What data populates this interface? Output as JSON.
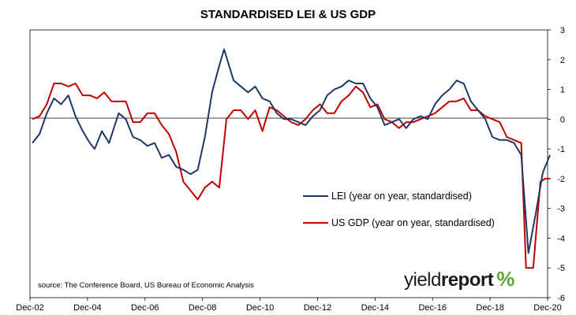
{
  "chart_data": {
    "type": "line",
    "title": "STANDARDISED LEI & US GDP",
    "x_tick_labels": [
      "Dec-02",
      "Dec-04",
      "Dec-06",
      "Dec-08",
      "Dec-10",
      "Dec-12",
      "Dec-14",
      "Dec-16",
      "Dec-18",
      "Dec-20"
    ],
    "y_right_ticks": [
      3,
      2,
      1,
      0,
      -1,
      -2,
      -3,
      -4,
      -5,
      -6
    ],
    "ylim": [
      -6,
      3
    ],
    "xlim": [
      "2002-12",
      "2020-12"
    ],
    "legend_position": "center-right",
    "grid": false,
    "y_axis_side": "right",
    "series": [
      {
        "name": "LEI (year on year, standardised)",
        "color": "#1f3864",
        "points": [
          [
            "2003-01",
            -0.8
          ],
          [
            "2003-04",
            -0.5
          ],
          [
            "2003-07",
            0.2
          ],
          [
            "2003-10",
            0.7
          ],
          [
            "2004-01",
            0.5
          ],
          [
            "2004-04",
            0.8
          ],
          [
            "2004-07",
            0.1
          ],
          [
            "2004-10",
            -0.4
          ],
          [
            "2005-01",
            -0.8
          ],
          [
            "2005-03",
            -1.0
          ],
          [
            "2005-06",
            -0.4
          ],
          [
            "2005-09",
            -0.8
          ],
          [
            "2006-01",
            0.2
          ],
          [
            "2006-04",
            0.0
          ],
          [
            "2006-07",
            -0.6
          ],
          [
            "2006-10",
            -0.7
          ],
          [
            "2007-01",
            -0.9
          ],
          [
            "2007-04",
            -0.8
          ],
          [
            "2007-07",
            -1.3
          ],
          [
            "2007-10",
            -1.2
          ],
          [
            "2008-01",
            -1.6
          ],
          [
            "2008-04",
            -1.7
          ],
          [
            "2008-07",
            -1.85
          ],
          [
            "2008-10",
            -1.7
          ],
          [
            "2009-01",
            -0.6
          ],
          [
            "2009-04",
            0.9
          ],
          [
            "2009-07",
            1.8
          ],
          [
            "2009-09",
            2.35
          ],
          [
            "2010-01",
            1.3
          ],
          [
            "2010-04",
            1.1
          ],
          [
            "2010-07",
            0.9
          ],
          [
            "2010-10",
            1.1
          ],
          [
            "2011-01",
            0.7
          ],
          [
            "2011-04",
            0.6
          ],
          [
            "2011-07",
            0.2
          ],
          [
            "2011-10",
            0.0
          ],
          [
            "2012-01",
            0.0
          ],
          [
            "2012-04",
            -0.1
          ],
          [
            "2012-07",
            -0.2
          ],
          [
            "2012-10",
            0.1
          ],
          [
            "2013-01",
            0.3
          ],
          [
            "2013-04",
            0.8
          ],
          [
            "2013-07",
            1.0
          ],
          [
            "2013-10",
            1.1
          ],
          [
            "2014-01",
            1.3
          ],
          [
            "2014-04",
            1.2
          ],
          [
            "2014-07",
            1.2
          ],
          [
            "2014-10",
            0.7
          ],
          [
            "2015-01",
            0.4
          ],
          [
            "2015-04",
            -0.2
          ],
          [
            "2015-07",
            -0.1
          ],
          [
            "2015-10",
            0.0
          ],
          [
            "2016-01",
            -0.3
          ],
          [
            "2016-04",
            0.0
          ],
          [
            "2016-07",
            0.1
          ],
          [
            "2016-10",
            0.0
          ],
          [
            "2017-01",
            0.5
          ],
          [
            "2017-04",
            0.8
          ],
          [
            "2017-07",
            1.0
          ],
          [
            "2017-10",
            1.3
          ],
          [
            "2018-01",
            1.2
          ],
          [
            "2018-04",
            0.6
          ],
          [
            "2018-07",
            0.3
          ],
          [
            "2018-10",
            0.0
          ],
          [
            "2019-01",
            -0.6
          ],
          [
            "2019-04",
            -0.7
          ],
          [
            "2019-07",
            -0.7
          ],
          [
            "2019-10",
            -0.8
          ],
          [
            "2020-01",
            -1.2
          ],
          [
            "2020-04",
            -4.5
          ],
          [
            "2020-07",
            -3.2
          ],
          [
            "2020-10",
            -1.8
          ],
          [
            "2021-01",
            -1.2
          ]
        ]
      },
      {
        "name": "US GDP (year on year, standardised)",
        "color": "#c00000",
        "points": [
          [
            "2003-01",
            0.0
          ],
          [
            "2003-04",
            0.1
          ],
          [
            "2003-07",
            0.5
          ],
          [
            "2003-10",
            1.2
          ],
          [
            "2004-01",
            1.2
          ],
          [
            "2004-04",
            1.1
          ],
          [
            "2004-07",
            1.2
          ],
          [
            "2004-10",
            0.8
          ],
          [
            "2005-01",
            0.8
          ],
          [
            "2005-04",
            0.7
          ],
          [
            "2005-07",
            0.9
          ],
          [
            "2005-10",
            0.6
          ],
          [
            "2006-01",
            0.6
          ],
          [
            "2006-04",
            0.6
          ],
          [
            "2006-07",
            -0.1
          ],
          [
            "2006-10",
            -0.1
          ],
          [
            "2007-01",
            0.2
          ],
          [
            "2007-04",
            0.2
          ],
          [
            "2007-07",
            -0.2
          ],
          [
            "2007-10",
            -0.5
          ],
          [
            "2008-01",
            -1.1
          ],
          [
            "2008-04",
            -2.1
          ],
          [
            "2008-07",
            -2.4
          ],
          [
            "2008-10",
            -2.7
          ],
          [
            "2009-01",
            -2.3
          ],
          [
            "2009-04",
            -2.1
          ],
          [
            "2009-07",
            -2.3
          ],
          [
            "2009-10",
            0.0
          ],
          [
            "2010-01",
            0.3
          ],
          [
            "2010-04",
            0.3
          ],
          [
            "2010-07",
            0.0
          ],
          [
            "2010-10",
            0.3
          ],
          [
            "2011-01",
            -0.4
          ],
          [
            "2011-04",
            0.4
          ],
          [
            "2011-07",
            0.3
          ],
          [
            "2011-10",
            0.1
          ],
          [
            "2012-01",
            -0.1
          ],
          [
            "2012-04",
            -0.2
          ],
          [
            "2012-07",
            0.0
          ],
          [
            "2012-10",
            0.3
          ],
          [
            "2013-01",
            0.5
          ],
          [
            "2013-04",
            0.2
          ],
          [
            "2013-07",
            0.2
          ],
          [
            "2013-10",
            0.6
          ],
          [
            "2014-01",
            0.8
          ],
          [
            "2014-04",
            1.1
          ],
          [
            "2014-07",
            0.9
          ],
          [
            "2014-10",
            0.4
          ],
          [
            "2015-01",
            0.5
          ],
          [
            "2015-04",
            0.0
          ],
          [
            "2015-07",
            -0.1
          ],
          [
            "2015-10",
            -0.3
          ],
          [
            "2016-01",
            -0.1
          ],
          [
            "2016-04",
            -0.1
          ],
          [
            "2016-07",
            0.0
          ],
          [
            "2016-10",
            0.1
          ],
          [
            "2017-01",
            0.2
          ],
          [
            "2017-04",
            0.4
          ],
          [
            "2017-07",
            0.6
          ],
          [
            "2017-10",
            0.6
          ],
          [
            "2018-01",
            0.7
          ],
          [
            "2018-04",
            0.3
          ],
          [
            "2018-07",
            0.3
          ],
          [
            "2018-10",
            0.1
          ],
          [
            "2019-01",
            0.0
          ],
          [
            "2019-04",
            -0.1
          ],
          [
            "2019-07",
            -0.6
          ],
          [
            "2019-10",
            -0.7
          ],
          [
            "2020-01",
            -0.8
          ],
          [
            "2020-03",
            -5.0
          ],
          [
            "2020-06",
            -5.0
          ],
          [
            "2020-09",
            -2.1
          ],
          [
            "2020-11",
            -2.0
          ],
          [
            "2021-01",
            -2.0
          ]
        ]
      }
    ]
  },
  "source_note": "source: The Conference Board, US Bureau of Economic Analysis",
  "logo": {
    "word_regular": "yield",
    "word_bold": "report",
    "pct": "%",
    "pct_color_top": "#5fa83a",
    "pct_color_bottom": "#c0272d"
  }
}
